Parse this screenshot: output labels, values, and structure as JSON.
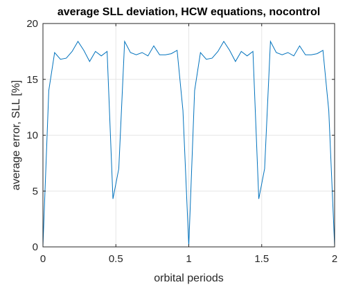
{
  "chart_data": {
    "type": "line",
    "title": "average SLL deviation, HCW equations, nocontrol",
    "xlabel": "orbital periods",
    "ylabel": "average error, SLL [%]",
    "xlim": [
      0,
      2
    ],
    "ylim": [
      0,
      20
    ],
    "xticks": [
      0,
      0.5,
      1,
      1.5,
      2
    ],
    "xtick_labels": [
      "0",
      "0.5",
      "1",
      "1.5",
      "2"
    ],
    "yticks": [
      0,
      5,
      10,
      15,
      20
    ],
    "ytick_labels": [
      "0",
      "5",
      "10",
      "15",
      "20"
    ],
    "grid": true,
    "color": "#0072bd",
    "x": [
      0,
      0.04,
      0.08,
      0.12,
      0.16,
      0.2,
      0.24,
      0.28,
      0.32,
      0.36,
      0.4,
      0.44,
      0.48,
      0.52,
      0.56,
      0.6,
      0.64,
      0.68,
      0.72,
      0.76,
      0.8,
      0.84,
      0.88,
      0.92,
      0.96,
      1.0,
      1.04,
      1.08,
      1.12,
      1.16,
      1.2,
      1.24,
      1.28,
      1.32,
      1.36,
      1.4,
      1.44,
      1.48,
      1.52,
      1.56,
      1.6,
      1.64,
      1.68,
      1.72,
      1.76,
      1.8,
      1.84,
      1.88,
      1.92,
      1.96,
      2.0
    ],
    "y": [
      0.1,
      14.0,
      17.4,
      16.8,
      16.9,
      17.5,
      18.4,
      17.6,
      16.6,
      17.5,
      17.1,
      17.5,
      4.3,
      7.0,
      18.4,
      17.4,
      17.2,
      17.4,
      17.1,
      18.0,
      17.2,
      17.2,
      17.3,
      17.6,
      12.2,
      0.1,
      14.0,
      17.4,
      16.8,
      16.9,
      17.5,
      18.4,
      17.6,
      16.6,
      17.5,
      17.1,
      17.5,
      4.3,
      7.0,
      18.4,
      17.4,
      17.2,
      17.4,
      17.1,
      18.0,
      17.2,
      17.2,
      17.3,
      17.6,
      12.2,
      0.1
    ]
  }
}
